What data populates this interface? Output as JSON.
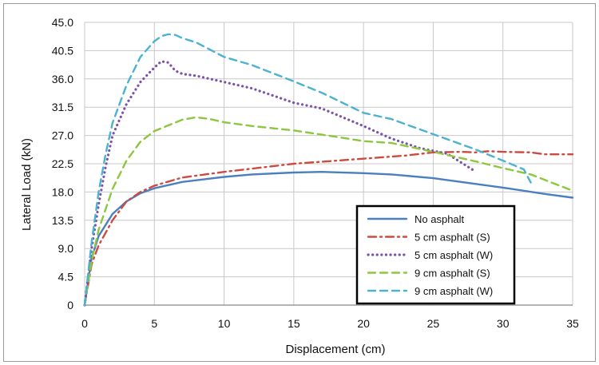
{
  "chart_data": {
    "type": "line",
    "title": "",
    "xlabel": "Displacement (cm)",
    "ylabel": "Lateral Load (kN)",
    "xlim": [
      0,
      35
    ],
    "ylim": [
      0,
      45
    ],
    "x_ticks": [
      "0",
      "5",
      "10",
      "15",
      "20",
      "25",
      "30",
      "35"
    ],
    "y_ticks": [
      "0",
      "4.5",
      "9.0",
      "13.5",
      "18.0",
      "22.5",
      "27.0",
      "31.5",
      "36.0",
      "40.5",
      "45.0"
    ],
    "grid": true,
    "legend_position": "bottom-right",
    "series": [
      {
        "name": "No asphalt",
        "color": "#4a7fc1",
        "style": "solid",
        "x": [
          0,
          0.5,
          1,
          2,
          3,
          4,
          5,
          7,
          10,
          12,
          15,
          17,
          20,
          22,
          25,
          27,
          30,
          33,
          35
        ],
        "y": [
          0,
          7.5,
          11,
          14.5,
          16.5,
          17.8,
          18.6,
          19.6,
          20.4,
          20.8,
          21.1,
          21.2,
          21,
          20.8,
          20.2,
          19.6,
          18.7,
          17.7,
          17.1
        ]
      },
      {
        "name": "5 cm asphalt (S)",
        "color": "#cd4a3f",
        "style": "dashdot",
        "x": [
          0,
          0.5,
          1,
          2,
          3,
          4,
          5,
          7,
          10,
          15,
          20,
          23,
          25,
          27,
          28,
          29,
          30,
          32,
          33,
          35
        ],
        "y": [
          0,
          6.5,
          9.5,
          13.5,
          16.5,
          18,
          19,
          20.3,
          21.2,
          22.5,
          23.3,
          23.8,
          24.3,
          24.4,
          24.3,
          24.5,
          24.4,
          24.3,
          24,
          24
        ]
      },
      {
        "name": "5 cm asphalt (W)",
        "color": "#7b52ab",
        "style": "dotted",
        "x": [
          0,
          0.5,
          1,
          1.5,
          2,
          3,
          4,
          5,
          5.5,
          6,
          6.5,
          7,
          8,
          10,
          12,
          15,
          17,
          20,
          22,
          24,
          26,
          28
        ],
        "y": [
          0,
          9,
          16,
          22,
          27,
          32,
          35.5,
          37.8,
          38.8,
          38.6,
          37.3,
          36.8,
          36.5,
          35.5,
          34.5,
          32.2,
          31.3,
          28.5,
          26.5,
          25,
          24.1,
          21.3
        ]
      },
      {
        "name": "9 cm asphalt (S)",
        "color": "#8dc63f",
        "style": "dashed",
        "x": [
          0,
          0.5,
          1,
          2,
          3,
          4,
          5,
          6,
          7,
          8,
          9,
          10,
          12,
          15,
          18,
          20,
          22,
          25,
          28,
          30,
          32,
          35
        ],
        "y": [
          0,
          7,
          12,
          18.5,
          23,
          26,
          27.7,
          28.6,
          29.5,
          29.9,
          29.6,
          29.1,
          28.5,
          27.8,
          26.8,
          26.1,
          25.8,
          24.4,
          22.9,
          21.8,
          20.8,
          18.2
        ]
      },
      {
        "name": "9 cm asphalt (W)",
        "color": "#4bb2cf",
        "style": "dashed",
        "x": [
          0,
          0.5,
          1,
          1.5,
          2,
          3,
          4,
          5,
          5.5,
          6,
          6.5,
          7,
          8,
          10,
          12,
          15,
          17,
          20,
          22,
          25,
          28,
          30,
          31.5,
          32
        ],
        "y": [
          0,
          10,
          18,
          24,
          29,
          35,
          39.5,
          42,
          42.8,
          43.1,
          43,
          42.5,
          41.8,
          39.5,
          38.2,
          35.6,
          33.8,
          30.6,
          29.6,
          27.2,
          24.8,
          23,
          21.6,
          19.5
        ]
      }
    ]
  }
}
